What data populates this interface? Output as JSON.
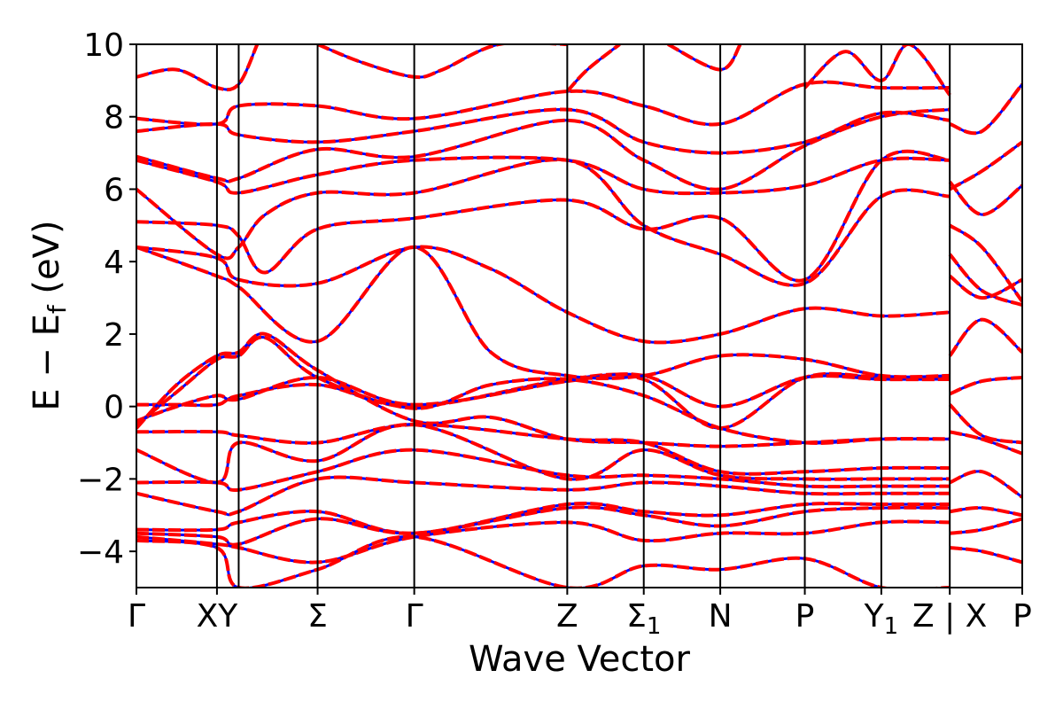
{
  "chart_data": {
    "type": "line",
    "xlabel": "Wave Vector",
    "ylabel": "E − E",
    "ylabel_sub": "f",
    "ylabel_unit": " (eV)",
    "ylim": [
      -5,
      10
    ],
    "yticks": [
      -4,
      -2,
      0,
      2,
      4,
      6,
      8,
      10
    ],
    "ytick_labels": [
      "−4",
      "−2",
      "0",
      "2",
      "4",
      "6",
      "8",
      "10"
    ],
    "grid": false,
    "kpath": [
      {
        "label": "Γ",
        "x": 0.0
      },
      {
        "label": "XY",
        "x": 1.0
      },
      {
        "label": "Σ",
        "x": 2.25
      },
      {
        "label": "Γ",
        "x": 3.45
      },
      {
        "label": "Z",
        "x": 5.35
      },
      {
        "label": "Σ",
        "sub": "1",
        "x": 6.3
      },
      {
        "label": "N",
        "x": 7.25
      },
      {
        "label": "P",
        "x": 8.3
      },
      {
        "label": "Y",
        "sub": "1",
        "x": 9.25
      },
      {
        "label": "Z | X",
        "x": 10.1
      },
      {
        "label": "P",
        "x": 11.0
      }
    ],
    "kpath_verticals": [
      1.0,
      1.27,
      2.25,
      3.45,
      5.35,
      6.3,
      7.25,
      8.3,
      9.25,
      10.1
    ],
    "xlim": [
      0,
      11.0
    ],
    "styles": {
      "a": {
        "color": "#0000ff",
        "dash": "solid",
        "width": 3
      },
      "b": {
        "color": "#ff0000",
        "dash": "dashed",
        "width": 4
      }
    },
    "bands": [
      {
        "x": [
          0,
          0.5,
          1.0,
          1.27,
          2.25,
          3.45,
          5.35,
          6.3,
          7.25,
          8.3,
          9.25,
          10.1
        ],
        "y": [
          0.05,
          0.05,
          0.05,
          0.3,
          0.6,
          0.0,
          0.75,
          0.75,
          -0.6,
          0.8,
          0.8,
          0.8
        ]
      },
      {
        "x": [
          0,
          0.5,
          1.0,
          1.27,
          2.25,
          3.45,
          5.35,
          6.3,
          7.25,
          8.3,
          9.25,
          10.1
        ],
        "y": [
          -0.4,
          0.0,
          0.3,
          0.2,
          0.8,
          0.05,
          0.7,
          0.85,
          0.0,
          0.8,
          0.75,
          0.75
        ]
      },
      {
        "x": [
          0,
          0.5,
          1.0,
          1.27,
          1.6,
          2.25,
          3.45,
          4.4,
          5.35,
          6.3,
          7.25,
          8.3,
          9.25,
          10.1
        ],
        "y": [
          -0.5,
          0.4,
          1.3,
          1.4,
          1.9,
          0.8,
          -0.05,
          0.6,
          0.75,
          0.3,
          -0.6,
          -1.0,
          -0.9,
          -0.9
        ]
      },
      {
        "x": [
          0,
          0.5,
          1.0,
          1.27,
          1.6,
          2.25,
          3.45,
          4.4,
          5.35,
          6.3,
          7.25,
          8.3,
          9.25,
          10.1
        ],
        "y": [
          -0.6,
          0.6,
          1.4,
          1.5,
          2.0,
          1.0,
          -0.4,
          -0.3,
          -0.9,
          -1.0,
          -1.1,
          -1.0,
          -0.9,
          -0.9
        ]
      },
      {
        "x": [
          0,
          1.0,
          1.27,
          2.25,
          3.45,
          5.35,
          6.3,
          7.25,
          8.3,
          9.25,
          10.1
        ],
        "y": [
          -0.7,
          -0.7,
          -0.8,
          -1.0,
          -0.5,
          -0.9,
          -1.0,
          -1.8,
          -1.8,
          -1.7,
          -1.7
        ]
      },
      {
        "x": [
          0,
          1.0,
          1.27,
          2.25,
          3.45,
          5.35,
          6.3,
          7.25,
          8.3,
          9.25,
          10.1
        ],
        "y": [
          -1.2,
          -2.1,
          -1.0,
          -1.5,
          -0.5,
          -2.0,
          -1.2,
          -1.9,
          -2.0,
          -2.0,
          -2.0
        ]
      },
      {
        "x": [
          0,
          1.0,
          1.27,
          2.25,
          3.45,
          5.35,
          6.3,
          7.25,
          8.3,
          9.25,
          10.1
        ],
        "y": [
          -2.1,
          -2.1,
          -2.3,
          -1.8,
          -1.2,
          -1.9,
          -1.9,
          -2.0,
          -2.2,
          -2.2,
          -2.2
        ]
      },
      {
        "x": [
          0,
          1.0,
          1.27,
          2.25,
          3.45,
          5.35,
          6.3,
          7.25,
          8.3,
          9.25,
          10.1
        ],
        "y": [
          -2.4,
          -2.9,
          -2.9,
          -2.0,
          -2.1,
          -2.3,
          -2.1,
          -2.2,
          -2.4,
          -2.4,
          -2.4
        ]
      },
      {
        "x": [
          0,
          1.0,
          1.27,
          2.25,
          3.45,
          5.35,
          6.3,
          7.25,
          8.3,
          9.25,
          10.1
        ],
        "y": [
          -3.4,
          -3.4,
          -3.2,
          -2.9,
          -3.5,
          -2.7,
          -2.9,
          -3.0,
          -2.7,
          -2.7,
          -2.7
        ]
      },
      {
        "x": [
          0,
          1.0,
          1.27,
          2.25,
          3.45,
          5.35,
          6.3,
          7.25,
          8.3,
          9.25,
          10.1
        ],
        "y": [
          -3.5,
          -3.6,
          -3.8,
          -3.1,
          -3.5,
          -2.8,
          -3.0,
          -3.3,
          -2.9,
          -2.8,
          -2.8
        ]
      },
      {
        "x": [
          0,
          1.0,
          1.27,
          2.25,
          3.45,
          5.35,
          6.3,
          7.25,
          8.3,
          9.25,
          10.1
        ],
        "y": [
          -3.6,
          -3.8,
          -3.9,
          -4.3,
          -3.6,
          -3.2,
          -3.7,
          -3.5,
          -3.5,
          -3.2,
          -3.2
        ]
      },
      {
        "x": [
          0,
          1.0,
          1.27,
          2.25,
          3.45,
          5.35,
          6.3,
          7.25,
          8.3,
          9.25,
          10.1
        ],
        "y": [
          -3.7,
          -3.9,
          -5.0,
          -4.5,
          -3.6,
          -5.0,
          -4.4,
          -4.5,
          -4.2,
          -5.0,
          -5.0
        ]
      },
      {
        "x": [
          0,
          1.0,
          1.27,
          2.25,
          3.45,
          4.4,
          5.35,
          6.3,
          7.25,
          8.3,
          9.25,
          10.1
        ],
        "y": [
          4.4,
          3.6,
          3.3,
          1.8,
          4.4,
          1.5,
          0.85,
          0.85,
          1.4,
          1.3,
          0.85,
          0.85
        ]
      },
      {
        "x": [
          0,
          1.0,
          1.27,
          2.25,
          3.45,
          4.4,
          5.35,
          6.3,
          7.25,
          8.3,
          9.25,
          10.1
        ],
        "y": [
          4.4,
          4.1,
          3.5,
          3.4,
          4.4,
          3.8,
          2.6,
          1.8,
          2.0,
          2.7,
          2.5,
          2.6
        ]
      },
      {
        "x": [
          0,
          1.0,
          1.27,
          1.6,
          2.25,
          3.45,
          5.35,
          6.3,
          7.25,
          8.3,
          9.25,
          10.1
        ],
        "y": [
          5.1,
          5.0,
          4.7,
          3.7,
          4.9,
          5.2,
          5.7,
          4.9,
          5.2,
          3.5,
          6.8,
          6.8
        ]
      },
      {
        "x": [
          0,
          1.0,
          1.27,
          1.6,
          2.25,
          3.45,
          5.35,
          6.3,
          7.25,
          8.3,
          9.25,
          10.1
        ],
        "y": [
          6.0,
          4.2,
          4.4,
          5.3,
          5.9,
          5.9,
          6.8,
          5.0,
          4.2,
          3.4,
          5.8,
          5.8
        ]
      },
      {
        "x": [
          0,
          1.0,
          1.27,
          2.25,
          3.45,
          5.35,
          6.3,
          7.25,
          8.3,
          9.25,
          10.1
        ],
        "y": [
          6.8,
          6.2,
          5.9,
          6.4,
          6.8,
          6.8,
          6.0,
          5.9,
          6.1,
          6.8,
          6.8
        ]
      },
      {
        "x": [
          0,
          1.0,
          1.27,
          2.25,
          3.45,
          5.35,
          6.3,
          7.25,
          8.3,
          9.25,
          10.1
        ],
        "y": [
          6.9,
          6.3,
          6.3,
          7.1,
          6.9,
          7.9,
          6.8,
          6.0,
          7.2,
          8.0,
          8.2
        ]
      },
      {
        "x": [
          0,
          1.0,
          1.27,
          2.25,
          3.45,
          5.35,
          6.3,
          7.25,
          8.3,
          9.25,
          10.1
        ],
        "y": [
          7.6,
          7.8,
          7.5,
          7.3,
          7.6,
          8.2,
          7.3,
          7.0,
          7.3,
          8.1,
          7.9
        ]
      },
      {
        "x": [
          0,
          1.0,
          1.27,
          2.25,
          3.45,
          5.35,
          6.3,
          7.25,
          8.3,
          9.25,
          10.1
        ],
        "y": [
          7.95,
          7.8,
          8.3,
          8.3,
          7.95,
          8.7,
          8.3,
          7.8,
          8.9,
          8.8,
          8.8
        ]
      },
      {
        "x": [
          0,
          0.5,
          1.0,
          1.27,
          1.5
        ],
        "y": [
          9.1,
          9.3,
          8.8,
          8.9,
          10.0
        ]
      },
      {
        "x": [
          10.1,
          10.5,
          11.0
        ],
        "y": [
          0.35,
          0.7,
          0.8
        ]
      },
      {
        "x": [
          10.1,
          10.5,
          11.0
        ],
        "y": [
          0.05,
          -0.8,
          -1.0
        ]
      },
      {
        "x": [
          10.1,
          10.5,
          11.0
        ],
        "y": [
          1.4,
          2.4,
          1.5
        ]
      },
      {
        "x": [
          10.1,
          10.5,
          11.0
        ],
        "y": [
          4.2,
          3.2,
          2.8
        ]
      },
      {
        "x": [
          10.1,
          10.5,
          11.0
        ],
        "y": [
          3.6,
          3.0,
          3.5
        ]
      },
      {
        "x": [
          10.1,
          10.5,
          11.0
        ],
        "y": [
          5.0,
          4.4,
          2.9
        ]
      },
      {
        "x": [
          10.1,
          10.5,
          11.0
        ],
        "y": [
          6.2,
          5.3,
          6.1
        ]
      },
      {
        "x": [
          10.1,
          10.5,
          11.0
        ],
        "y": [
          6.0,
          6.5,
          7.3
        ]
      },
      {
        "x": [
          10.1,
          10.5,
          11.0
        ],
        "y": [
          7.8,
          7.6,
          8.9
        ]
      },
      {
        "x": [
          10.1,
          10.5,
          11.0
        ],
        "y": [
          -0.7,
          -0.9,
          -1.3
        ]
      },
      {
        "x": [
          10.1,
          10.5,
          11.0
        ],
        "y": [
          -2.1,
          -1.8,
          -2.5
        ]
      },
      {
        "x": [
          10.1,
          10.5,
          11.0
        ],
        "y": [
          -2.9,
          -2.8,
          -3.0
        ]
      },
      {
        "x": [
          10.1,
          10.5,
          11.0
        ],
        "y": [
          -3.5,
          -3.4,
          -3.1
        ]
      },
      {
        "x": [
          10.1,
          10.5,
          11.0
        ],
        "y": [
          -3.9,
          -4.0,
          -4.3
        ]
      },
      {
        "x": [
          2.25,
          2.8,
          3.45,
          3.8,
          4.5,
          5.35
        ],
        "y": [
          10.0,
          9.5,
          9.1,
          9.3,
          10.0,
          10.0
        ]
      },
      {
        "x": [
          5.35,
          5.6,
          6.0
        ],
        "y": [
          8.7,
          9.3,
          10.0
        ]
      },
      {
        "x": [
          6.6,
          7.25,
          7.5
        ],
        "y": [
          10.0,
          9.3,
          10.0
        ]
      },
      {
        "x": [
          8.3,
          8.8,
          9.25,
          9.6,
          10.1
        ],
        "y": [
          8.8,
          9.8,
          9.0,
          10.0,
          8.6
        ]
      }
    ]
  }
}
